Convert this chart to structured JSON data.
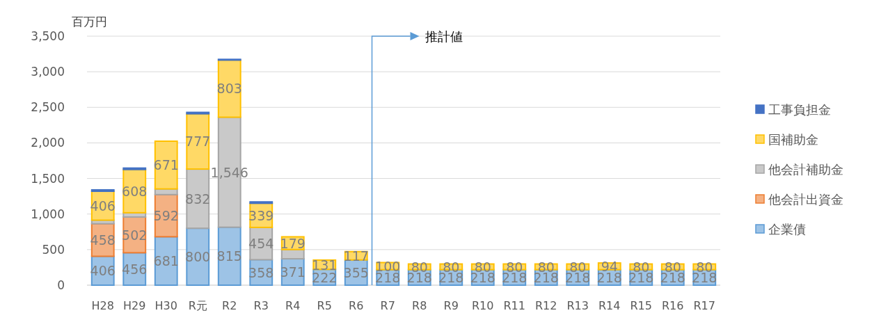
{
  "chart_data": {
    "type": "bar",
    "stacked": true,
    "ylabel": "百万円",
    "categories": [
      "H28",
      "H29",
      "H30",
      "R元",
      "R2",
      "R3",
      "R4",
      "R5",
      "R6",
      "R7",
      "R8",
      "R9",
      "R10",
      "R11",
      "R12",
      "R13",
      "R14",
      "R15",
      "R16",
      "R17"
    ],
    "series": [
      {
        "name": "企業債",
        "color": "#9dc3e6",
        "values": [
          406,
          456,
          681,
          800,
          815,
          358,
          371,
          222,
          355,
          218,
          218,
          218,
          218,
          218,
          218,
          218,
          218,
          218,
          218,
          218
        ],
        "value_labels": [
          "406",
          "456",
          "681",
          "800",
          "815",
          "358",
          "371",
          "222",
          "355",
          "218",
          "218",
          "218",
          "218",
          "218",
          "218",
          "218",
          "218",
          "218",
          "218",
          "218"
        ]
      },
      {
        "name": "他会計出資金",
        "color": "#f4b183",
        "values": [
          458,
          502,
          592,
          null,
          null,
          null,
          null,
          null,
          null,
          null,
          null,
          null,
          null,
          null,
          null,
          null,
          null,
          null,
          null,
          null
        ],
        "value_labels": [
          "458",
          "502",
          "592",
          null,
          null,
          null,
          null,
          null,
          null,
          null,
          null,
          null,
          null,
          null,
          null,
          null,
          null,
          null,
          null,
          null
        ]
      },
      {
        "name": "他会計補助金",
        "color": "#c9c9c9",
        "values": [
          50,
          60,
          80,
          832,
          1546,
          454,
          130,
          null,
          null,
          null,
          null,
          null,
          null,
          null,
          null,
          null,
          null,
          null,
          null,
          null
        ],
        "value_labels": [
          null,
          null,
          null,
          "832",
          "1,546",
          "454",
          null,
          null,
          null,
          null,
          null,
          null,
          null,
          null,
          null,
          null,
          null,
          null,
          null,
          null
        ]
      },
      {
        "name": "国補助金",
        "color": "#ffd966",
        "values": [
          406,
          608,
          671,
          777,
          803,
          339,
          179,
          131,
          117,
          100,
          80,
          80,
          80,
          80,
          80,
          80,
          94,
          80,
          80,
          80
        ],
        "value_labels": [
          "406",
          "608",
          "671",
          "777",
          "803",
          "339",
          "179",
          "131",
          "117",
          "100",
          "80",
          "80",
          "80",
          "80",
          "80",
          "80",
          "94",
          "80",
          "80",
          "80"
        ]
      },
      {
        "name": "工事負担金",
        "color": "#4472c4",
        "values": [
          20,
          20,
          null,
          20,
          10,
          20,
          null,
          null,
          null,
          null,
          null,
          null,
          null,
          null,
          null,
          null,
          null,
          null,
          null,
          null
        ],
        "value_labels": [
          null,
          null,
          null,
          null,
          null,
          null,
          null,
          null,
          null,
          null,
          null,
          null,
          null,
          null,
          null,
          null,
          null,
          null,
          null,
          null
        ]
      }
    ],
    "ylim": [
      0,
      3500
    ],
    "yticks": [
      {
        "value": 0,
        "label": "0"
      },
      {
        "value": 500,
        "label": "500"
      },
      {
        "value": 1000,
        "label": "1,000"
      },
      {
        "value": 1500,
        "label": "1,500"
      },
      {
        "value": 2000,
        "label": "2,000"
      },
      {
        "value": 2500,
        "label": "2,500"
      },
      {
        "value": 3000,
        "label": "3,000"
      },
      {
        "value": 3500,
        "label": "3,500"
      }
    ],
    "grid": "y",
    "legend": "right",
    "annotations": [
      "推計値"
    ]
  }
}
